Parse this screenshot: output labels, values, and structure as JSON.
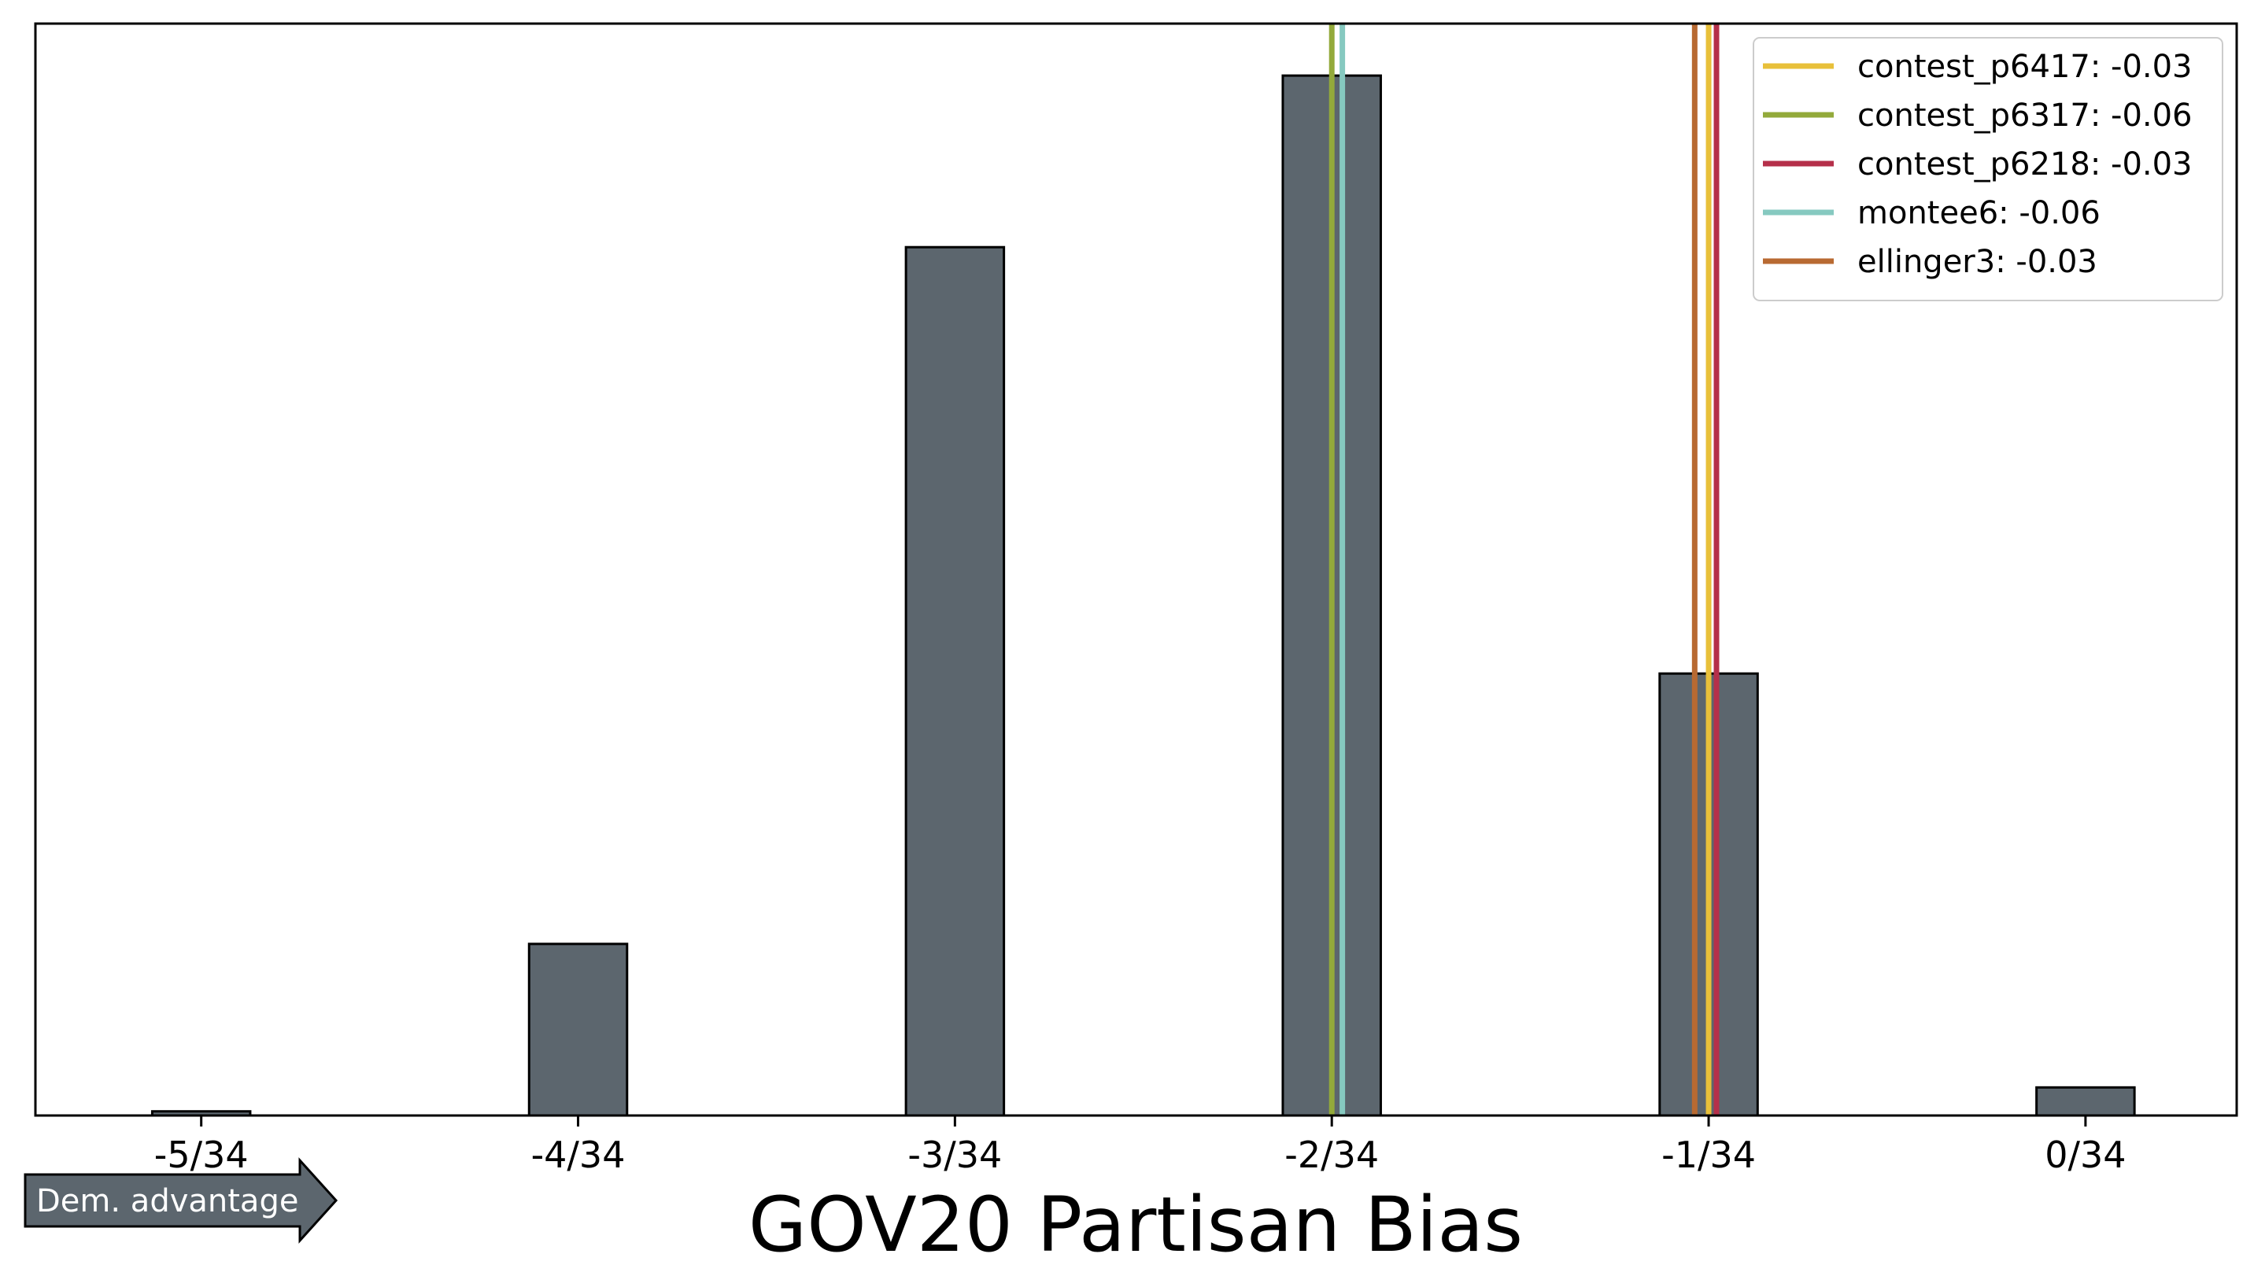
{
  "chart_data": {
    "type": "bar",
    "title": "",
    "xlabel": "GOV20 Partisan Bias",
    "ylabel": "",
    "y_ticks_visible": false,
    "x_ticks": [
      {
        "value": -0.1470588,
        "label": "-5/34"
      },
      {
        "value": -0.1176471,
        "label": "-4/34"
      },
      {
        "value": -0.0882353,
        "label": "-3/34"
      },
      {
        "value": -0.0588235,
        "label": "-2/34"
      },
      {
        "value": -0.0294118,
        "label": "-1/34"
      },
      {
        "value": 0.0,
        "label": "0/34"
      }
    ],
    "xlim": [
      -0.16,
      0.0118
    ],
    "ylim": [
      0,
      1.05
    ],
    "bin_width": 0.0147059,
    "bars": [
      {
        "x": -0.1470588,
        "value": 0.004
      },
      {
        "x": -0.1323529,
        "value": 0.0
      },
      {
        "x": -0.1176471,
        "value": 0.165
      },
      {
        "x": -0.1029412,
        "value": 0.0
      },
      {
        "x": -0.0882353,
        "value": 0.835
      },
      {
        "x": -0.0735294,
        "value": 0.0
      },
      {
        "x": -0.0588235,
        "value": 1.0
      },
      {
        "x": -0.0441176,
        "value": 0.0
      },
      {
        "x": -0.0294118,
        "value": 0.425
      },
      {
        "x": -0.0147059,
        "value": 0.0
      },
      {
        "x": 0.0,
        "value": 0.027
      }
    ],
    "bar_color": "#5c666e",
    "bar_edge_color": "#000000",
    "lines": [
      {
        "name": "contest_p6417: -0.03",
        "x": -0.0294118,
        "color": "#e8c03a"
      },
      {
        "name": "contest_p6317: -0.06",
        "x": -0.0588235,
        "color": "#93aa3b"
      },
      {
        "name": "contest_p6218: -0.03",
        "x": -0.0288,
        "color": "#b5304a"
      },
      {
        "name": "montee6: -0.06",
        "x": -0.058,
        "color": "#86c9c0"
      },
      {
        "name": "ellinger3: -0.03",
        "x": -0.0305,
        "color": "#b86a32"
      }
    ],
    "legend_placement": "top-right",
    "grid": false,
    "annotation": {
      "text": "Dem. advantage",
      "direction": "right",
      "color": "#5c666e"
    }
  }
}
